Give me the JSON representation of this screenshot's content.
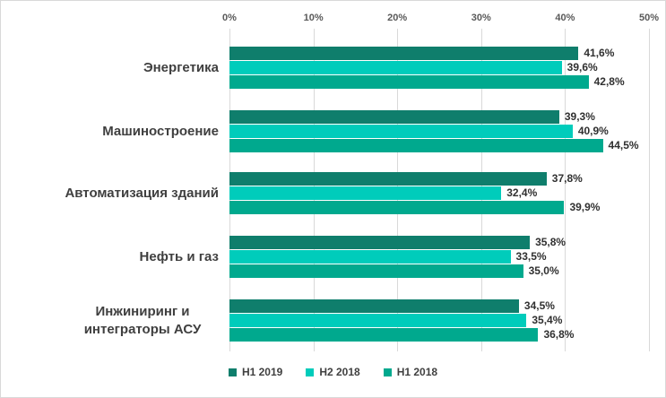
{
  "chart_data": {
    "type": "bar",
    "orientation": "horizontal",
    "title": "",
    "xlabel": "",
    "ylabel": "",
    "x_axis": {
      "ticks": [
        "0%",
        "10%",
        "20%",
        "30%",
        "40%",
        "50%"
      ],
      "min": 0,
      "max": 50,
      "position": "top"
    },
    "grid": true,
    "legend_position": "bottom",
    "categories": [
      "Энергетика",
      "Машиностроение",
      "Автоматизация зданий",
      "Нефть и газ",
      "Инжиниринг и интеграторы АСУ"
    ],
    "series": [
      {
        "name": "H1 2019",
        "color": "#0F7E6C",
        "values": [
          41.6,
          39.3,
          37.8,
          35.8,
          34.5
        ]
      },
      {
        "name": "H2 2018",
        "color": "#00CCBB",
        "values": [
          39.6,
          40.9,
          32.4,
          33.5,
          35.4
        ]
      },
      {
        "name": "H1 2018",
        "color": "#00A98E",
        "values": [
          42.8,
          44.5,
          39.9,
          35.0,
          36.8
        ]
      }
    ],
    "data_labels": [
      [
        "41,6%",
        "39,6%",
        "42,8%"
      ],
      [
        "39,3%",
        "40,9%",
        "44,5%"
      ],
      [
        "37,8%",
        "32,4%",
        "39,9%"
      ],
      [
        "35,8%",
        "33,5%",
        "35,0%"
      ],
      [
        "34,5%",
        "35,4%",
        "36,8%"
      ]
    ],
    "colors": {
      "grid": "#D9D9D9",
      "axis_text": "#595959",
      "category_text": "#3F3F3F",
      "value_text": "#303030",
      "background": "#FFFFFF",
      "border": "#D9D9D9"
    }
  }
}
